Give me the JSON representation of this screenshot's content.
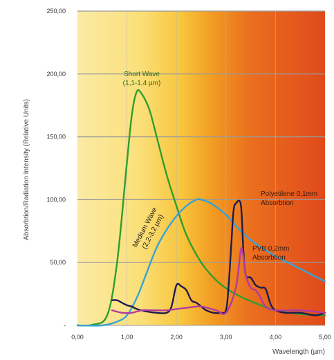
{
  "chart_data": {
    "type": "line",
    "title": "",
    "xlabel": "Wavelength (µm)",
    "ylabel": "Absorbtion/Radiation Intensity (Relative Units)",
    "xlim": [
      0,
      5
    ],
    "ylim": [
      0,
      250
    ],
    "x_ticks": [
      "0,00",
      "1,00",
      "2,00",
      "3,00",
      "4,00",
      "5,00"
    ],
    "y_ticks": [
      "-",
      "50,00",
      "100,00",
      "150,00",
      "200,00",
      "250,00"
    ],
    "y_tick_values": [
      0,
      50,
      100,
      150,
      200,
      250
    ],
    "grid": true,
    "background": "vertical gradient from pale yellow (short wavelength) to red-orange (long wavelength)",
    "series": [
      {
        "color": "#2e9e2e",
        "x": [
          0,
          0.3,
          0.6,
          0.8,
          1.0,
          1.1,
          1.2,
          1.3,
          1.45,
          1.6,
          1.8,
          2.0,
          2.2,
          2.5,
          2.8,
          3.1,
          3.4,
          3.7,
          4.0,
          4.5,
          5.0
        ],
        "y": [
          0,
          0.5,
          8,
          50,
          130,
          168,
          186,
          184,
          172,
          150,
          120,
          95,
          72,
          50,
          36,
          27,
          21,
          16,
          12,
          9,
          8
        ]
      },
      {
        "color": "#37a2d6",
        "x": [
          0,
          0.5,
          0.8,
          1.0,
          1.2,
          1.4,
          1.6,
          1.8,
          2.0,
          2.2,
          2.4,
          2.5,
          2.7,
          3.0,
          3.3,
          3.6,
          4.0,
          4.5,
          5.0
        ],
        "y": [
          0,
          0,
          3,
          8,
          22,
          42,
          62,
          76,
          87,
          95,
          100,
          100,
          97,
          88,
          75,
          65,
          55,
          45,
          35
        ]
      },
      {
        "color": "#1f1b4a",
        "x": [
          0.7,
          0.8,
          0.9,
          1.0,
          1.1,
          1.2,
          1.4,
          1.6,
          1.8,
          1.9,
          2.0,
          2.1,
          2.2,
          2.3,
          2.4,
          2.5,
          2.6,
          2.75,
          2.9,
          3.0,
          3.05,
          3.1,
          3.15,
          3.2,
          3.3,
          3.35,
          3.4,
          3.5,
          3.6,
          3.7,
          3.8,
          3.9,
          4.0,
          4.2,
          4.5,
          4.8,
          5.0
        ],
        "y": [
          20,
          20,
          18,
          16,
          15,
          13,
          11,
          10,
          10,
          15,
          32,
          31,
          28,
          20,
          18,
          15,
          12,
          10,
          10,
          12,
          30,
          60,
          90,
          97,
          96,
          60,
          40,
          38,
          32,
          30,
          29,
          17,
          12,
          10,
          10,
          8,
          10
        ]
      },
      {
        "color": "#b23aa0",
        "x": [
          0.7,
          0.9,
          1.1,
          1.3,
          1.5,
          1.8,
          2.0,
          2.2,
          2.5,
          2.8,
          3.0,
          3.2,
          3.3,
          3.35,
          3.4,
          3.5,
          3.6,
          3.7,
          3.8,
          4.0,
          4.5,
          5.0
        ],
        "y": [
          12,
          10,
          10,
          12,
          12,
          12,
          13,
          14,
          15,
          12,
          10,
          30,
          60,
          55,
          40,
          30,
          28,
          22,
          15,
          12,
          12,
          10
        ]
      }
    ],
    "annotations": [
      {
        "text_lines": [
          "Short Wave",
          "(1,1-1,4 µm)"
        ],
        "color": "#2a6b1e",
        "rotation": 0
      },
      {
        "text_lines": [
          "Medium Wave",
          "(2,2-3,2 µm)"
        ],
        "color": "#1a1a1a",
        "rotation": -62
      },
      {
        "text_lines": [
          "Polyetilene 0,1mm",
          "Absorbtion"
        ],
        "color": "#3a1a12",
        "rotation": 0
      },
      {
        "text_lines": [
          "PVB 0,2mm",
          "Absorbtion"
        ],
        "color": "#3a1a12",
        "rotation": 0
      }
    ]
  }
}
